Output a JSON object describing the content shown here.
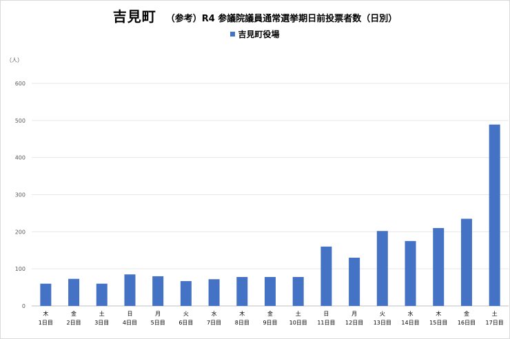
{
  "chart_data": {
    "type": "bar",
    "title": "吉見町",
    "subtitle": "（参考）R4 参議院議員通常選挙期日前投票者数（日別）",
    "ylabel": "（人）",
    "ylim": [
      0,
      600
    ],
    "yticks": [
      0,
      100,
      200,
      300,
      400,
      500,
      600
    ],
    "grid": true,
    "legend_position": "top",
    "categories": [
      {
        "weekday": "木",
        "day": "1日目"
      },
      {
        "weekday": "金",
        "day": "2日目"
      },
      {
        "weekday": "土",
        "day": "3日目"
      },
      {
        "weekday": "日",
        "day": "4日目"
      },
      {
        "weekday": "月",
        "day": "5日目"
      },
      {
        "weekday": "火",
        "day": "6日目"
      },
      {
        "weekday": "水",
        "day": "7日目"
      },
      {
        "weekday": "木",
        "day": "8日目"
      },
      {
        "weekday": "金",
        "day": "9日目"
      },
      {
        "weekday": "土",
        "day": "10日目"
      },
      {
        "weekday": "日",
        "day": "11日目"
      },
      {
        "weekday": "月",
        "day": "12日目"
      },
      {
        "weekday": "火",
        "day": "13日目"
      },
      {
        "weekday": "水",
        "day": "14日目"
      },
      {
        "weekday": "木",
        "day": "15日目"
      },
      {
        "weekday": "金",
        "day": "16日目"
      },
      {
        "weekday": "土",
        "day": "17日目"
      }
    ],
    "series": [
      {
        "name": "吉見町役場",
        "color": "#4472c4",
        "values": [
          60,
          73,
          60,
          85,
          80,
          67,
          72,
          78,
          78,
          78,
          160,
          130,
          202,
          175,
          210,
          235,
          489
        ]
      }
    ]
  }
}
